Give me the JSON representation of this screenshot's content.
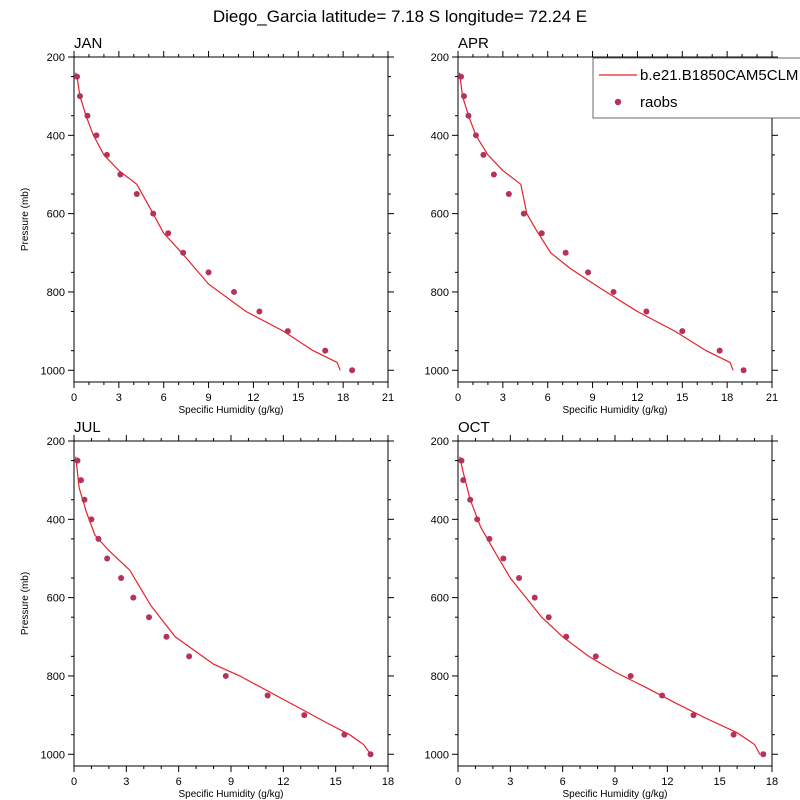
{
  "main_title": "Diego_Garcia  latitude= 7.18 S longitude= 72.24 E",
  "legend": {
    "model_label": "b.e21.B1850CAM5CLM",
    "obs_label": "raobs",
    "position": "top-right"
  },
  "colors": {
    "model_line": "#e8202a",
    "obs_marker": "#b5325a",
    "frame": "#000000"
  },
  "chart_data": [
    {
      "type": "line",
      "panel": "JAN",
      "title": "JAN",
      "xlabel": "Specific Humidity (g/kg)",
      "ylabel": "Pressure (mb)",
      "xlim": [
        0,
        21
      ],
      "xticks": [
        0,
        3,
        6,
        9,
        12,
        15,
        18,
        21
      ],
      "ylim": [
        1030,
        200
      ],
      "yticks": [
        200,
        400,
        600,
        800,
        1000
      ],
      "series": [
        {
          "name": "b.e21.B1850CAM5CLM",
          "kind": "line",
          "x": [
            17.8,
            17.6,
            16.0,
            14.0,
            11.5,
            9.0,
            7.2,
            6.0,
            5.0,
            4.2,
            3.0,
            2.0,
            1.3,
            0.8,
            0.4,
            0.2,
            0.1
          ],
          "y": [
            1000,
            980,
            950,
            900,
            850,
            780,
            700,
            650,
            580,
            525,
            490,
            450,
            400,
            350,
            300,
            250,
            240
          ]
        },
        {
          "name": "raobs",
          "kind": "scatter",
          "x": [
            18.6,
            16.8,
            14.3,
            12.4,
            10.7,
            9.0,
            7.3,
            6.3,
            5.3,
            4.2,
            3.1,
            2.2,
            1.5,
            0.9,
            0.4,
            0.2
          ],
          "y": [
            1000,
            950,
            900,
            850,
            800,
            750,
            700,
            650,
            600,
            550,
            500,
            450,
            400,
            350,
            300,
            250
          ]
        }
      ]
    },
    {
      "type": "line",
      "panel": "APR",
      "title": "APR",
      "xlabel": "Specific Humidity (g/kg)",
      "ylabel": "",
      "xlim": [
        0,
        21
      ],
      "xticks": [
        0,
        3,
        6,
        9,
        12,
        15,
        18,
        21
      ],
      "ylim": [
        1030,
        200
      ],
      "yticks": [
        200,
        400,
        600,
        800,
        1000
      ],
      "series": [
        {
          "name": "b.e21.B1850CAM5CLM",
          "kind": "line",
          "x": [
            18.4,
            18.2,
            16.6,
            14.5,
            12.0,
            9.5,
            7.5,
            6.2,
            5.2,
            4.6,
            4.2,
            3.0,
            2.0,
            1.2,
            0.7,
            0.3,
            0.1
          ],
          "y": [
            1000,
            980,
            950,
            900,
            850,
            790,
            740,
            700,
            640,
            600,
            525,
            490,
            450,
            400,
            350,
            300,
            240
          ]
        },
        {
          "name": "raobs",
          "kind": "scatter",
          "x": [
            19.1,
            17.5,
            15.0,
            12.6,
            10.4,
            8.7,
            7.2,
            5.6,
            4.4,
            3.4,
            2.4,
            1.7,
            1.2,
            0.7,
            0.4,
            0.2
          ],
          "y": [
            1000,
            950,
            900,
            850,
            800,
            750,
            700,
            650,
            600,
            550,
            500,
            450,
            400,
            350,
            300,
            250
          ]
        }
      ]
    },
    {
      "type": "line",
      "panel": "JUL",
      "title": "JUL",
      "xlabel": "Specific Humidity (g/kg)",
      "ylabel": "Pressure (mb)",
      "xlim": [
        0,
        18
      ],
      "xticks": [
        0,
        3,
        6,
        9,
        12,
        15,
        18
      ],
      "ylim": [
        1030,
        200
      ],
      "yticks": [
        200,
        400,
        600,
        800,
        1000
      ],
      "series": [
        {
          "name": "b.e21.B1850CAM5CLM",
          "kind": "line",
          "x": [
            17.0,
            16.6,
            15.8,
            14.5,
            12.0,
            9.5,
            8.0,
            5.8,
            4.4,
            3.2,
            2.0,
            1.2,
            0.7,
            0.3,
            0.1
          ],
          "y": [
            1000,
            975,
            950,
            920,
            860,
            800,
            770,
            700,
            620,
            530,
            480,
            440,
            380,
            320,
            240
          ]
        },
        {
          "name": "raobs",
          "kind": "scatter",
          "x": [
            17.0,
            15.5,
            13.2,
            11.1,
            8.7,
            6.6,
            5.3,
            4.3,
            3.4,
            2.7,
            1.9,
            1.4,
            1.0,
            0.6,
            0.4,
            0.2
          ],
          "y": [
            1000,
            950,
            900,
            850,
            800,
            750,
            700,
            650,
            600,
            550,
            500,
            450,
            400,
            350,
            300,
            250
          ]
        }
      ]
    },
    {
      "type": "line",
      "panel": "OCT",
      "title": "OCT",
      "xlabel": "Specific Humidity (g/kg)",
      "ylabel": "",
      "xlim": [
        0,
        18
      ],
      "xticks": [
        0,
        3,
        6,
        9,
        12,
        15,
        18
      ],
      "ylim": [
        1030,
        200
      ],
      "yticks": [
        200,
        400,
        600,
        800,
        1000
      ],
      "series": [
        {
          "name": "b.e21.B1850CAM5CLM",
          "kind": "line",
          "x": [
            17.3,
            17.0,
            16.0,
            14.3,
            12.5,
            10.8,
            9.0,
            7.5,
            6.0,
            4.8,
            3.9,
            3.0,
            2.2,
            1.3,
            0.7,
            0.3,
            0.1
          ],
          "y": [
            1000,
            975,
            945,
            910,
            870,
            830,
            790,
            750,
            700,
            650,
            600,
            550,
            490,
            420,
            350,
            280,
            240
          ]
        },
        {
          "name": "raobs",
          "kind": "scatter",
          "x": [
            17.5,
            15.8,
            13.5,
            11.7,
            9.9,
            7.9,
            6.2,
            5.2,
            4.4,
            3.5,
            2.6,
            1.8,
            1.1,
            0.7,
            0.3,
            0.2
          ],
          "y": [
            1000,
            950,
            900,
            850,
            800,
            750,
            700,
            650,
            600,
            550,
            500,
            450,
            400,
            350,
            300,
            250
          ]
        }
      ]
    }
  ]
}
